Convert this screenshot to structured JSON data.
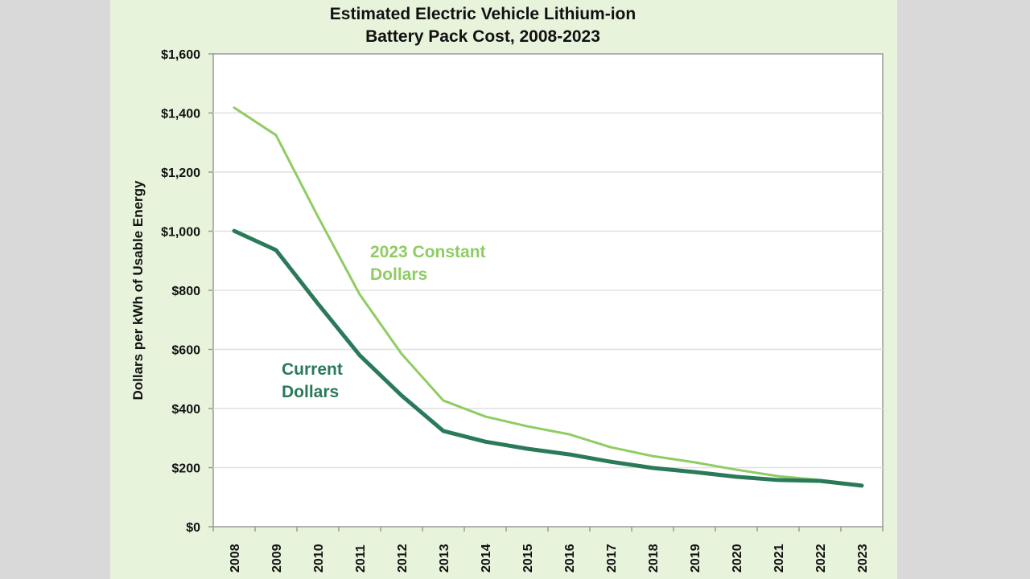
{
  "chart_data": {
    "type": "line",
    "title": [
      "Estimated Electric Vehicle Lithium-ion",
      "Battery Pack Cost, 2008-2023"
    ],
    "xlabel": "",
    "ylabel": "Dollars per kWh of Usable Energy",
    "ylim": [
      0,
      1600
    ],
    "yticks": [
      0,
      200,
      400,
      600,
      800,
      1000,
      1200,
      1400,
      1600
    ],
    "ytick_labels": [
      "$0",
      "$200",
      "$400",
      "$600",
      "$800",
      "$1,000",
      "$1,200",
      "$1,400",
      "$1,600"
    ],
    "grid": true,
    "categories": [
      "2008",
      "2009",
      "2010",
      "2011",
      "2012",
      "2013",
      "2014",
      "2015",
      "2016",
      "2017",
      "2018",
      "2019",
      "2020",
      "2021",
      "2022",
      "2023"
    ],
    "series": [
      {
        "name": "2023 Constant Dollars",
        "label_lines": [
          "2023 Constant",
          "Dollars"
        ],
        "color": "#8fcc63",
        "values": [
          1418,
          1325,
          1050,
          786,
          585,
          427,
          373,
          340,
          313,
          269,
          239,
          218,
          193,
          171,
          158,
          141
        ]
      },
      {
        "name": "Current Dollars",
        "label_lines": [
          "Current",
          "Dollars"
        ],
        "color": "#2a7a5a",
        "values": [
          1001,
          936,
          755,
          580,
          444,
          324,
          288,
          264,
          245,
          220,
          199,
          185,
          169,
          158,
          155,
          139
        ]
      }
    ]
  },
  "colors": {
    "page_background": "#d9d9d9",
    "panel_background": "#e8f3dc",
    "plot_background": "#ffffff"
  }
}
